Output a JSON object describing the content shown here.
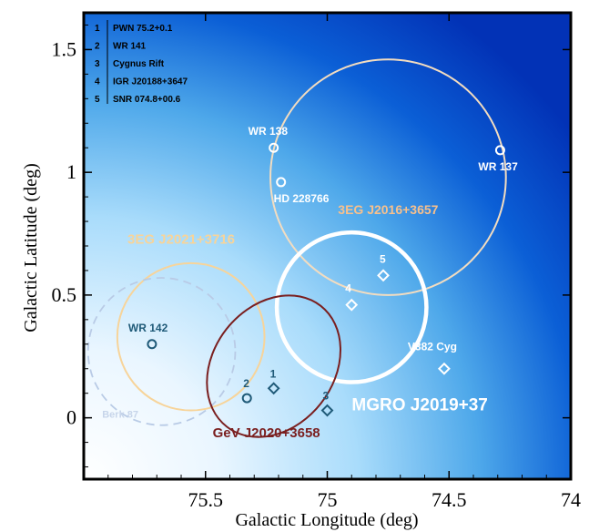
{
  "chart_data": {
    "type": "scatter",
    "xlabel": "Galactic Longitude (deg)",
    "ylabel": "Galactic Latitude (deg)",
    "xlim": [
      76.0,
      74.0
    ],
    "ylim": [
      -0.25,
      1.65
    ],
    "x_reversed": true,
    "xticks": [
      75.5,
      75,
      74.5,
      74
    ],
    "xtick_labels": [
      "75.5",
      "75",
      "74.5",
      "74"
    ],
    "yticks": [
      0,
      0.5,
      1,
      1.5
    ],
    "ytick_labels": [
      "0",
      "0.5",
      "1",
      "1.5"
    ],
    "background": "blue gradient",
    "legend": {
      "placement": "top-left",
      "entries": [
        {
          "num": "1",
          "text": "PWN 75.2+0.1"
        },
        {
          "num": "2",
          "text": "WR 141"
        },
        {
          "num": "3",
          "text": "Cygnus Rift"
        },
        {
          "num": "4",
          "text": "IGR J20188+3647"
        },
        {
          "num": "5",
          "text": "SNR 074.8+00.6"
        }
      ]
    },
    "circles": [
      {
        "label": "3EG J2016+3657",
        "x": 74.75,
        "y": 0.98,
        "r": 0.48,
        "color": "#f2dcc0",
        "dashed": false,
        "width": 2,
        "label_x": 74.75,
        "label_y": 0.83,
        "label_color": "#f7c08d",
        "label_size": 14
      },
      {
        "label": "3EG J2021+3716",
        "x": 75.56,
        "y": 0.33,
        "r": 0.3,
        "color": "#f7d49a",
        "dashed": false,
        "width": 2,
        "label_x": 75.6,
        "label_y": 0.71,
        "label_color": "#f7d49a",
        "label_size": 15
      },
      {
        "label": "MGRO J2019+37",
        "x": 74.9,
        "y": 0.45,
        "r": 0.305,
        "color": "#ffffff",
        "dashed": false,
        "width": 4.5,
        "label_x": 74.62,
        "label_y": 0.03,
        "label_color": "#ffffff",
        "label_size": 19
      },
      {
        "label": "Berk 87",
        "x": 75.68,
        "y": 0.27,
        "r": 0.3,
        "color": "#b9cbe6",
        "dashed": true,
        "width": 1.8,
        "label_x": 75.85,
        "label_y": 0.0,
        "label_color": "#c7d5ea",
        "label_size": 11
      }
    ],
    "ellipses": [
      {
        "label": "GeV J2020+3658",
        "x": 75.22,
        "y": 0.21,
        "rx_px": 66,
        "ry_px": 84,
        "rotation": 38,
        "color": "#7a1f1f",
        "width": 2,
        "label_x": 75.25,
        "label_y": -0.08,
        "label_color": "#7a1f1f",
        "label_size": 15
      }
    ],
    "points": [
      {
        "label": "WR 138",
        "x": 75.22,
        "y": 1.1,
        "marker": "circle",
        "color": "#ffffff",
        "label_dx": -28,
        "label_dy": -14
      },
      {
        "label": "HD 228766",
        "x": 75.19,
        "y": 0.96,
        "marker": "circle",
        "color": "#ffffff",
        "label_dx": -8,
        "label_dy": 22
      },
      {
        "label": "WR 137",
        "x": 74.29,
        "y": 1.09,
        "marker": "circle",
        "color": "#ffffff",
        "label_dx": -24,
        "label_dy": 22
      },
      {
        "label": "WR 142",
        "x": 75.72,
        "y": 0.3,
        "marker": "circle",
        "color": "#1f5a78",
        "label_dx": -26,
        "label_dy": -14
      },
      {
        "label": "2",
        "x": 75.33,
        "y": 0.08,
        "marker": "circle",
        "color": "#1f5a78",
        "label_dx": -4,
        "label_dy": -12
      },
      {
        "label": "1",
        "x": 75.22,
        "y": 0.12,
        "marker": "diamond",
        "color": "#1f5a78",
        "label_dx": -4,
        "label_dy": -12
      },
      {
        "label": "3",
        "x": 75.0,
        "y": 0.03,
        "marker": "diamond",
        "color": "#1f5a78",
        "label_dx": -5,
        "label_dy": -12
      },
      {
        "label": "4",
        "x": 74.9,
        "y": 0.46,
        "marker": "diamond",
        "color": "#ffffff",
        "label_dx": -7,
        "label_dy": -14
      },
      {
        "label": "5",
        "x": 74.77,
        "y": 0.58,
        "marker": "diamond",
        "color": "#ffffff",
        "label_dx": -4,
        "label_dy": -14
      },
      {
        "label": "V382 Cyg",
        "x": 74.52,
        "y": 0.2,
        "marker": "diamond",
        "color": "#ffffff",
        "label_dx": -40,
        "label_dy": -20
      }
    ]
  }
}
